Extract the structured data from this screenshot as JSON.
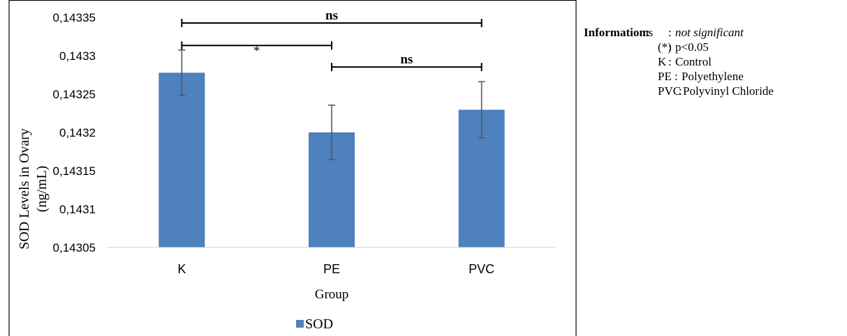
{
  "chart_data": {
    "type": "bar",
    "categories": [
      "K",
      "PE",
      "PVC"
    ],
    "series": [
      {
        "name": "SOD",
        "values": [
          0.1432779,
          0.1432001,
          0.1432296
        ],
        "error": [
          2.96e-05,
          3.55e-05,
          3.67e-05
        ],
        "color": "#4e81bd"
      }
    ],
    "xlabel": "Group",
    "ylabel_line1": "SOD Levels in Ovary",
    "ylabel_line2": "(ng/mL)",
    "ylim": [
      0.14305,
      0.14335
    ],
    "yticks": [
      {
        "value": 0.14305,
        "label": "0,14305"
      },
      {
        "value": 0.1431,
        "label": "0,1431"
      },
      {
        "value": 0.14315,
        "label": "0,14315"
      },
      {
        "value": 0.1432,
        "label": "0,1432"
      },
      {
        "value": 0.14325,
        "label": "0,14325"
      },
      {
        "value": 0.1433,
        "label": "0,1433"
      },
      {
        "value": 0.14335,
        "label": "0,14335"
      }
    ],
    "grid": false,
    "legend": "bottom",
    "significance": [
      {
        "from": "K",
        "to": "PVC",
        "label": "ns",
        "level": 0.1433427
      },
      {
        "from": "K",
        "to": "PE",
        "label": "*",
        "level": 0.1433134
      },
      {
        "from": "PE",
        "to": "PVC",
        "label": "ns",
        "level": 0.1432853
      }
    ]
  },
  "info": {
    "heading": "Information",
    "rows": [
      {
        "key": "ns",
        "sep": ":",
        "text": "not significant",
        "italic": true
      },
      {
        "key": "(*)",
        "sep": ":",
        "text": "p<0.05",
        "italic": false
      },
      {
        "key": "K",
        "sep": ":",
        "text": "Control",
        "italic": false
      },
      {
        "key": "PE",
        "sep": ":",
        "text": "Polyethylene",
        "italic": false
      },
      {
        "key": "PVC",
        "sep": ":",
        "text": "Polyvinyl Chloride",
        "italic": false
      }
    ]
  }
}
